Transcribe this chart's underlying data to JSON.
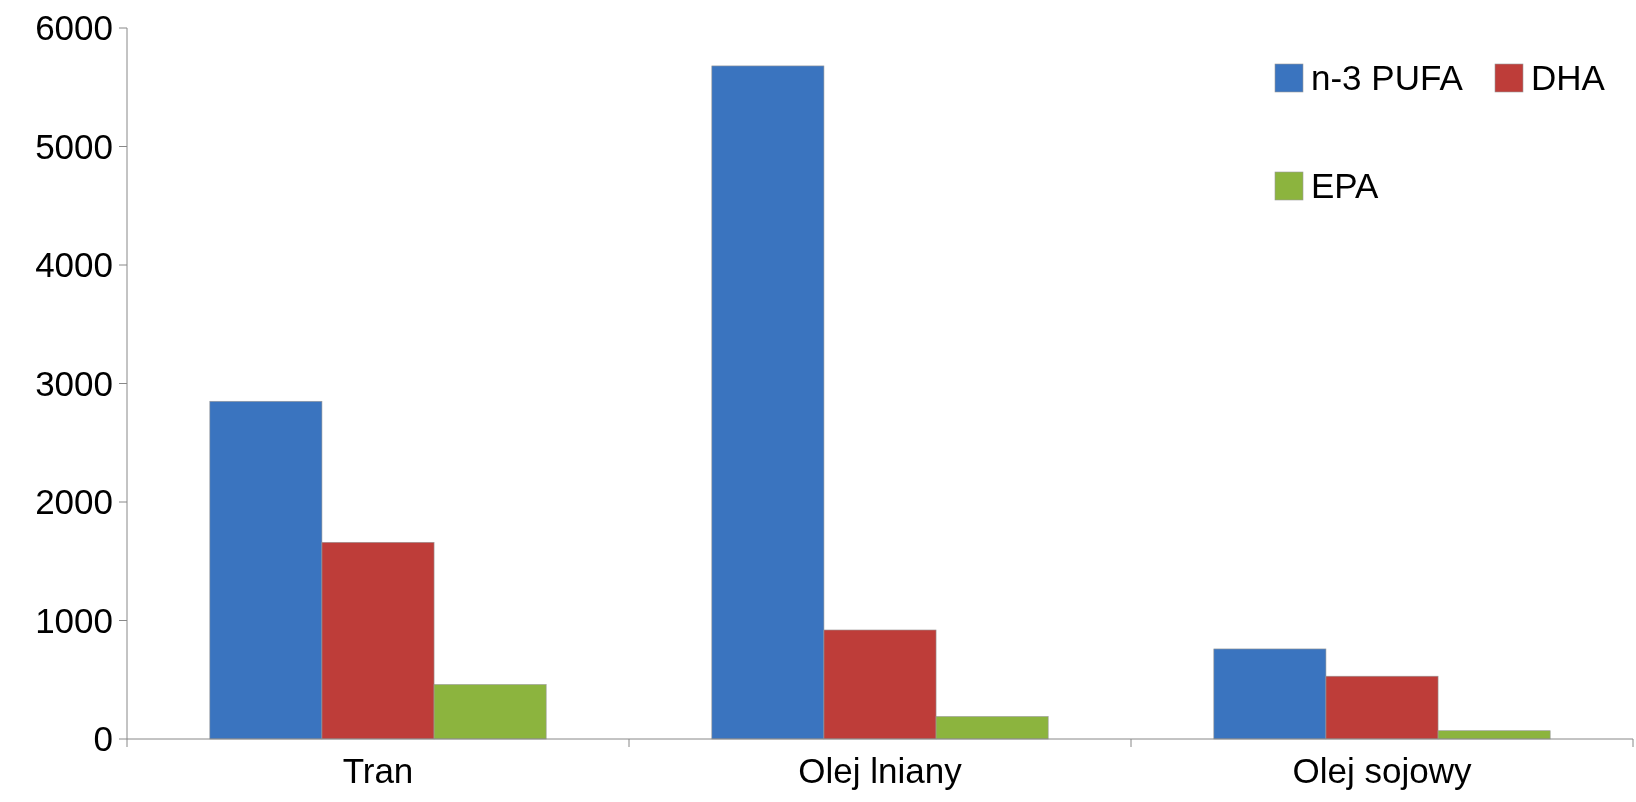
{
  "chart_data": {
    "type": "bar",
    "categories": [
      "Tran",
      "Olej lniany",
      "Olej sojowy"
    ],
    "series": [
      {
        "name": "n-3 PUFA",
        "color": "#3a74bf",
        "values": [
          2850,
          5680,
          760
        ]
      },
      {
        "name": "DHA",
        "color": "#be3d39",
        "values": [
          1660,
          920,
          530
        ]
      },
      {
        "name": "EPA",
        "color": "#8cb43e",
        "values": [
          460,
          190,
          70
        ]
      }
    ],
    "ylim": [
      0,
      6000
    ],
    "yticks": [
      0,
      1000,
      2000,
      3000,
      4000,
      5000,
      6000
    ],
    "legend": "top right"
  }
}
